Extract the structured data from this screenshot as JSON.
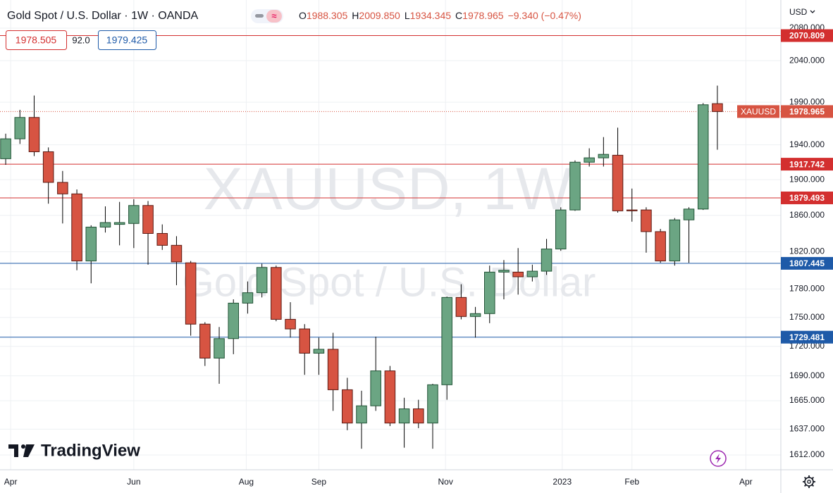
{
  "header": {
    "symbol": "Gold Spot / U.S. Dollar · 1W · OANDA",
    "ohlc": [
      {
        "key": "O",
        "value": "1988.305"
      },
      {
        "key": "H",
        "value": "2009.850"
      },
      {
        "key": "L",
        "value": "1934.345"
      },
      {
        "key": "C",
        "value": "1978.965"
      }
    ],
    "change": "−9.340 (−0.47%)",
    "bid": "1978.505",
    "spread": "92.0",
    "ask": "1979.425",
    "currency": "USD",
    "watermark": "XAUUSD, 1W",
    "watermark_subtitle": "Gold Spot / U.S. Dollar",
    "logo": "TradingView",
    "price_tag": "XAUUSD"
  },
  "chart_data": {
    "type": "candlestick",
    "x": [
      0,
      1,
      2,
      3,
      4,
      5,
      6,
      7,
      8,
      9,
      10,
      11,
      12,
      13,
      14,
      15,
      16,
      17,
      18,
      19,
      20,
      21,
      22,
      23,
      24,
      25,
      26,
      27,
      28,
      29,
      30,
      31,
      32,
      33,
      34,
      35,
      36,
      37,
      38,
      39,
      40,
      41,
      42,
      43,
      44,
      45,
      46,
      47,
      48,
      49,
      50
    ],
    "series": [
      {
        "name": "XAUUSD",
        "open": [
          1924,
          1947,
          1972,
          1932,
          1897,
          1884,
          1810,
          1847,
          1850,
          1851,
          1871,
          1840,
          1827,
          1808,
          1743,
          1708,
          1728,
          1765,
          1776,
          1803,
          1748,
          1738,
          1713,
          1717,
          1676,
          1643,
          1660,
          1695,
          1643,
          1657,
          1643,
          1681,
          1771,
          1751,
          1754,
          1798,
          1798,
          1793,
          1799,
          1823,
          1866,
          1920,
          1925,
          1928,
          1866,
          1866,
          1842,
          1810,
          1855,
          1867,
          1988.305
        ],
        "high": [
          1953,
          1981,
          1998,
          1937,
          1910,
          1889,
          1849,
          1870,
          1875,
          1878,
          1876,
          1850,
          1837,
          1810,
          1745,
          1740,
          1769,
          1788,
          1807,
          1805,
          1766,
          1743,
          1729,
          1734,
          1688,
          1675,
          1730,
          1700,
          1668,
          1666,
          1682,
          1772,
          1785,
          1761,
          1805,
          1811,
          1824,
          1806,
          1834,
          1869,
          1922,
          1936,
          1949,
          1960,
          1890,
          1869,
          1845,
          1857,
          1869,
          1989,
          2009.85
        ],
        "low": [
          1917,
          1941,
          1927,
          1873,
          1851,
          1800,
          1786,
          1841,
          1827,
          1824,
          1806,
          1822,
          1784,
          1731,
          1700,
          1682,
          1712,
          1754,
          1771,
          1746,
          1729,
          1691,
          1691,
          1655,
          1636,
          1618,
          1655,
          1640,
          1619,
          1638,
          1618,
          1666,
          1748,
          1729,
          1744,
          1769,
          1774,
          1788,
          1795,
          1821,
          1865,
          1915,
          1915,
          1863,
          1853,
          1819,
          1808,
          1805,
          1808,
          1866,
          1934.345
        ],
        "close": [
          1947,
          1972,
          1932,
          1897,
          1884,
          1810,
          1847,
          1852,
          1852,
          1871,
          1840,
          1827,
          1809,
          1743,
          1708,
          1728,
          1765,
          1776,
          1803,
          1748,
          1738,
          1713,
          1717,
          1676,
          1643,
          1660,
          1695,
          1643,
          1657,
          1643,
          1681,
          1771,
          1751,
          1754,
          1798,
          1800,
          1793,
          1799,
          1823,
          1866,
          1920,
          1925,
          1929,
          1865,
          1865,
          1842,
          1810,
          1855,
          1867,
          1987,
          1978.965
        ],
        "up_color": "#6ba583",
        "down_color": "#d75442",
        "up_border": "#225437",
        "down_border": "#5b1a13",
        "wick_color": "#000000"
      }
    ],
    "log_scale": true,
    "ylim": [
      1597.8,
      2115.3
    ],
    "yticks": [
      {
        "value": 1612,
        "label": "1612.000"
      },
      {
        "value": 1637,
        "label": "1637.000"
      },
      {
        "value": 1665,
        "label": "1665.000"
      },
      {
        "value": 1690,
        "label": "1690.000"
      },
      {
        "value": 1720,
        "label": "1720.000"
      },
      {
        "value": 1750,
        "label": "1750.000"
      },
      {
        "value": 1780,
        "label": "1780.000"
      },
      {
        "value": 1820,
        "label": "1820.000"
      },
      {
        "value": 1860,
        "label": "1860.000"
      },
      {
        "value": 1900,
        "label": "1900.000"
      },
      {
        "value": 1940,
        "label": "1940.000"
      },
      {
        "value": 1990,
        "label": "1990.000"
      },
      {
        "value": 2040,
        "label": "2040.000"
      },
      {
        "value": 2080,
        "label": "2080.000"
      }
    ],
    "xlim": [
      -0.4,
      54.46
    ],
    "xticks": [
      {
        "value": 0.35,
        "label": "Apr"
      },
      {
        "value": 9,
        "label": "Jun"
      },
      {
        "value": 16.9,
        "label": "Aug"
      },
      {
        "value": 22,
        "label": "Sep"
      },
      {
        "value": 30.9,
        "label": "Nov"
      },
      {
        "value": 39.1,
        "label": "2023"
      },
      {
        "value": 44,
        "label": "Feb"
      },
      {
        "value": 52,
        "label": "Apr"
      }
    ],
    "grid": true,
    "hlines": [
      {
        "value": 2070.809,
        "color": "#d32f2f"
      },
      {
        "value": 1917.742,
        "color": "#d32f2f"
      },
      {
        "value": 1879.493,
        "color": "#d32f2f"
      },
      {
        "value": 1807.445,
        "color": "#1e5aa8"
      },
      {
        "value": 1729.481,
        "color": "#1e5aa8"
      }
    ]
  }
}
